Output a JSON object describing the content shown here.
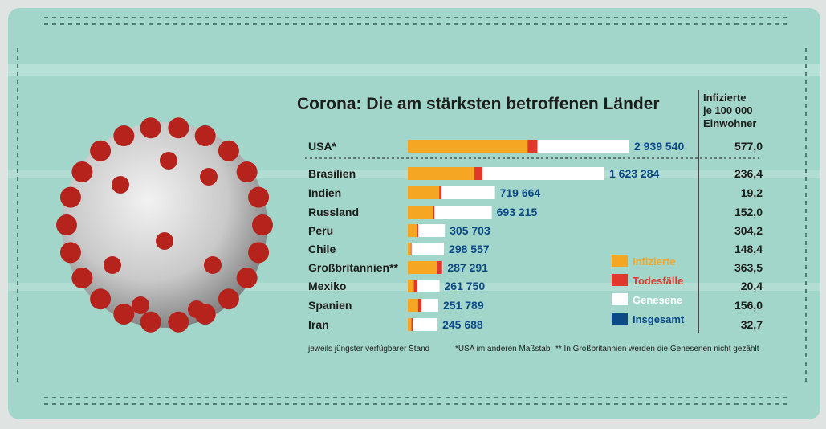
{
  "title": "Corona: Die am stärksten betroffenen Länder",
  "per_capita_header": [
    "Infizierte",
    "je 100 000",
    "Einwohner"
  ],
  "legend": [
    {
      "label": "Infizierte",
      "color": "#f5a623",
      "text_color": "#f5a623"
    },
    {
      "label": "Todesfälle",
      "color": "#e2382b",
      "text_color": "#e2382b"
    },
    {
      "label": "Genesene",
      "color": "#ffffff",
      "text_color": "#ffffff"
    },
    {
      "label": "Insgesamt",
      "color": "#0b4a86",
      "text_color": "#0b4a86"
    }
  ],
  "footnotes": {
    "left": "jeweils jüngster verfügbarer Stand",
    "mid": "*USA im anderen Maßstab",
    "right": "** In Großbritannien werden die Genesenen nicht gezählt"
  },
  "chart_data": {
    "type": "bar",
    "orientation": "horizontal",
    "stacked": true,
    "categories": [
      "USA*",
      "Brasilien",
      "Indien",
      "Russland",
      "Peru",
      "Chile",
      "Großbritannien**",
      "Mexiko",
      "Spanien",
      "Iran"
    ],
    "totals_labels": [
      "2 939 540",
      "1 623 284",
      "719 664",
      "693 215",
      "305 703",
      "298 557",
      "287 291",
      "261 750",
      "251 789",
      "245 688"
    ],
    "totals": [
      2939540,
      1623284,
      719664,
      693215,
      305703,
      298557,
      287291,
      261750,
      251789,
      245688
    ],
    "per_100000_labels": [
      "577,0",
      "236,4",
      "19,2",
      "152,0",
      "304,2",
      "148,4",
      "363,5",
      "20,4",
      "156,0",
      "32,7"
    ],
    "per_100000": [
      577.0,
      236.4,
      19.2,
      152.0,
      304.2,
      148.4,
      363.5,
      20.4,
      156.0,
      32.7
    ],
    "series": [
      {
        "name": "Infizierte",
        "values": [
          1590000,
          550000,
          260000,
          210000,
          75000,
          25000,
          240000,
          50000,
          85000,
          30000
        ]
      },
      {
        "name": "Todesfälle",
        "values": [
          130000,
          66000,
          20000,
          10000,
          11000,
          6000,
          44000,
          31000,
          28000,
          12000
        ]
      },
      {
        "name": "Genesene",
        "values": [
          1219540,
          1007284,
          439664,
          473215,
          219703,
          267557,
          3291,
          180750,
          138789,
          203688
        ]
      }
    ],
    "note": "USA*: im anderen Maßstab"
  }
}
